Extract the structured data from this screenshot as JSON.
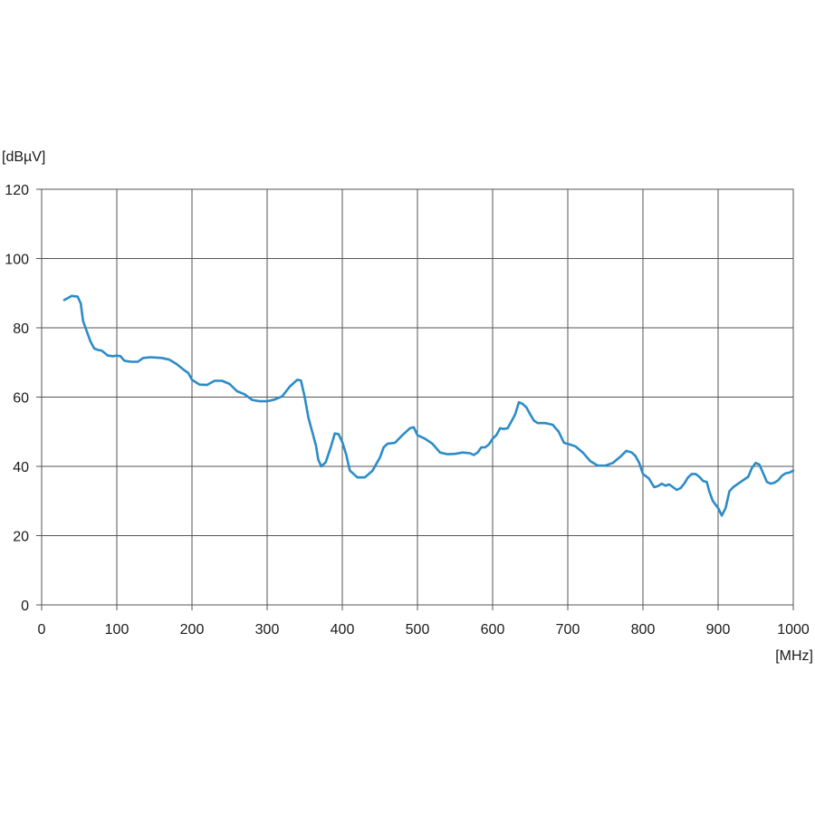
{
  "chart_data": {
    "type": "line",
    "title": "",
    "xlabel": "[MHz]",
    "ylabel": "[dBµV]",
    "xlim": [
      0,
      1000
    ],
    "ylim": [
      0,
      120
    ],
    "x_ticks": [
      0,
      100,
      200,
      300,
      400,
      500,
      600,
      700,
      800,
      900,
      1000
    ],
    "y_ticks": [
      0,
      20,
      40,
      60,
      80,
      100,
      120
    ],
    "grid": true,
    "legend": "none",
    "colors": {
      "line": "#2b8cc8",
      "grid": "#555555",
      "axis": "#555555"
    },
    "series": [
      {
        "points": [
          [
            30,
            88
          ],
          [
            40,
            89.2
          ],
          [
            48,
            89
          ],
          [
            52,
            87
          ],
          [
            55,
            82
          ],
          [
            60,
            79
          ],
          [
            65,
            76
          ],
          [
            70,
            74
          ],
          [
            75,
            73.6
          ],
          [
            80,
            73.4
          ],
          [
            88,
            72
          ],
          [
            95,
            71.8
          ],
          [
            100,
            72
          ],
          [
            105,
            71.8
          ],
          [
            110,
            70.5
          ],
          [
            115,
            70.3
          ],
          [
            120,
            70.2
          ],
          [
            128,
            70.2
          ],
          [
            135,
            71.3
          ],
          [
            145,
            71.5
          ],
          [
            160,
            71.3
          ],
          [
            170,
            70.8
          ],
          [
            180,
            69.5
          ],
          [
            190,
            67.7
          ],
          [
            195,
            67
          ],
          [
            200,
            65
          ],
          [
            210,
            63.6
          ],
          [
            220,
            63.5
          ],
          [
            230,
            64.7
          ],
          [
            240,
            64.7
          ],
          [
            250,
            63.8
          ],
          [
            260,
            61.7
          ],
          [
            270,
            60.8
          ],
          [
            280,
            59.2
          ],
          [
            290,
            58.8
          ],
          [
            300,
            58.8
          ],
          [
            310,
            59.3
          ],
          [
            320,
            60.2
          ],
          [
            330,
            63
          ],
          [
            340,
            65
          ],
          [
            345,
            64.8
          ],
          [
            350,
            60
          ],
          [
            355,
            54
          ],
          [
            360,
            50
          ],
          [
            365,
            46
          ],
          [
            368,
            42
          ],
          [
            372,
            40
          ],
          [
            378,
            41.2
          ],
          [
            385,
            45.8
          ],
          [
            390,
            49.5
          ],
          [
            395,
            49.3
          ],
          [
            400,
            47
          ],
          [
            405,
            43.5
          ],
          [
            410,
            38.8
          ],
          [
            420,
            36.8
          ],
          [
            430,
            36.8
          ],
          [
            440,
            38.7
          ],
          [
            450,
            42.5
          ],
          [
            455,
            45.5
          ],
          [
            460,
            46.5
          ],
          [
            470,
            46.8
          ],
          [
            480,
            49
          ],
          [
            490,
            51
          ],
          [
            495,
            51.3
          ],
          [
            500,
            49
          ],
          [
            510,
            48
          ],
          [
            520,
            46.5
          ],
          [
            530,
            44
          ],
          [
            540,
            43.5
          ],
          [
            550,
            43.6
          ],
          [
            560,
            44
          ],
          [
            570,
            43.8
          ],
          [
            575,
            43.3
          ],
          [
            580,
            44
          ],
          [
            585,
            45.5
          ],
          [
            590,
            45.5
          ],
          [
            595,
            46.3
          ],
          [
            600,
            48
          ],
          [
            605,
            49
          ],
          [
            610,
            51
          ],
          [
            615,
            50.8
          ],
          [
            620,
            51
          ],
          [
            625,
            53
          ],
          [
            630,
            55
          ],
          [
            635,
            58.5
          ],
          [
            640,
            58
          ],
          [
            645,
            57
          ],
          [
            650,
            55
          ],
          [
            655,
            53.2
          ],
          [
            660,
            52.5
          ],
          [
            670,
            52.5
          ],
          [
            680,
            52
          ],
          [
            688,
            50
          ],
          [
            695,
            46.8
          ],
          [
            700,
            46.5
          ],
          [
            710,
            45.8
          ],
          [
            720,
            44
          ],
          [
            730,
            41.5
          ],
          [
            740,
            40.2
          ],
          [
            750,
            40.2
          ],
          [
            760,
            41
          ],
          [
            770,
            42.8
          ],
          [
            778,
            44.5
          ],
          [
            785,
            44
          ],
          [
            790,
            43
          ],
          [
            795,
            41
          ],
          [
            800,
            37.8
          ],
          [
            808,
            36.5
          ],
          [
            815,
            34
          ],
          [
            820,
            34.3
          ],
          [
            825,
            35
          ],
          [
            830,
            34.4
          ],
          [
            835,
            34.8
          ],
          [
            840,
            34
          ],
          [
            845,
            33.2
          ],
          [
            850,
            33.7
          ],
          [
            855,
            35
          ],
          [
            860,
            36.8
          ],
          [
            865,
            37.8
          ],
          [
            870,
            37.8
          ],
          [
            875,
            37
          ],
          [
            880,
            35.8
          ],
          [
            885,
            35.5
          ],
          [
            888,
            33
          ],
          [
            893,
            30
          ],
          [
            900,
            28
          ],
          [
            905,
            25.8
          ],
          [
            910,
            28
          ],
          [
            915,
            32.8
          ],
          [
            920,
            34
          ],
          [
            930,
            35.5
          ],
          [
            940,
            37
          ],
          [
            945,
            39.5
          ],
          [
            950,
            41
          ],
          [
            955,
            40.5
          ],
          [
            960,
            38
          ],
          [
            965,
            35.5
          ],
          [
            970,
            35
          ],
          [
            975,
            35.3
          ],
          [
            980,
            36
          ],
          [
            985,
            37.3
          ],
          [
            990,
            38
          ],
          [
            995,
            38.2
          ],
          [
            1000,
            38.8
          ]
        ]
      }
    ]
  }
}
